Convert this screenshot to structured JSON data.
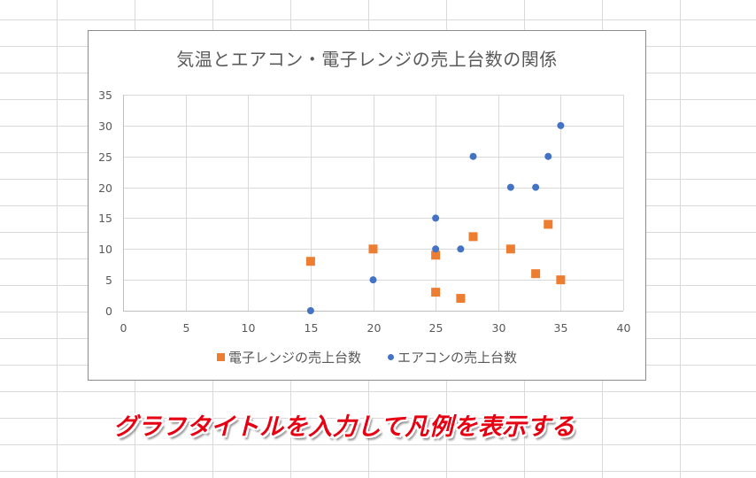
{
  "sheet": {
    "col_lines": [
      64,
      152,
      240,
      328,
      416,
      504,
      592,
      680,
      768
    ],
    "row_lines": [
      22,
      52,
      82,
      112,
      142,
      172,
      202,
      232,
      262,
      292,
      322,
      352,
      382,
      412,
      442,
      472,
      502,
      532
    ],
    "grid_color": "#d9d9d9"
  },
  "chart": {
    "title": "気温とエアコン・電子レンジの売上台数の関係",
    "colors": {
      "series1": "#ED7D31",
      "series2": "#4472C4",
      "gridline": "#d9d9d9",
      "axis_text": "#595959"
    }
  },
  "chart_data": {
    "type": "scatter",
    "title": "気温とエアコン・電子レンジの売上台数の関係",
    "xlabel": "",
    "ylabel": "",
    "xlim": [
      0,
      40
    ],
    "ylim": [
      0,
      35
    ],
    "x_ticks": [
      0,
      5,
      10,
      15,
      20,
      25,
      30,
      35,
      40
    ],
    "y_ticks": [
      0,
      5,
      10,
      15,
      20,
      25,
      30,
      35
    ],
    "grid": true,
    "legend_position": "bottom",
    "series": [
      {
        "name": "電子レンジの売上台数",
        "marker": "square",
        "color": "#ED7D31",
        "points": [
          [
            15,
            8
          ],
          [
            20,
            10
          ],
          [
            25,
            9
          ],
          [
            25,
            3
          ],
          [
            27,
            2
          ],
          [
            28,
            12
          ],
          [
            31,
            10
          ],
          [
            33,
            6
          ],
          [
            34,
            14
          ],
          [
            35,
            5
          ]
        ]
      },
      {
        "name": "エアコンの売上台数",
        "marker": "circle",
        "color": "#4472C4",
        "points": [
          [
            15,
            0
          ],
          [
            20,
            5
          ],
          [
            25,
            15
          ],
          [
            25,
            10
          ],
          [
            27,
            10
          ],
          [
            28,
            25
          ],
          [
            31,
            20
          ],
          [
            33,
            20
          ],
          [
            34,
            25
          ],
          [
            35,
            30
          ]
        ]
      }
    ]
  },
  "legend": {
    "items": [
      {
        "label": "電子レンジの売上台数",
        "color": "#ED7D31"
      },
      {
        "label": "エアコンの売上台数",
        "color": "#4472C4"
      }
    ]
  },
  "caption": {
    "text": "グラフタイトルを入力して凡例を表示する",
    "color": "#e60012"
  }
}
